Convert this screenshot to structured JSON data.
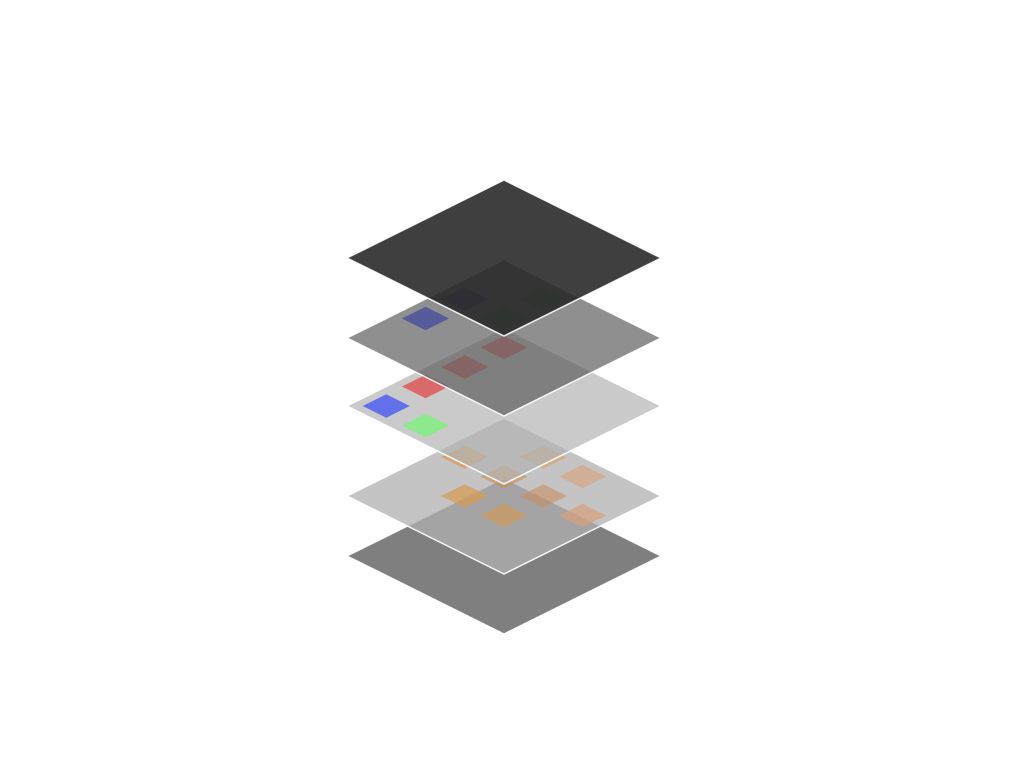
{
  "diagram": {
    "type": "isometric-layer-stack",
    "background_color": "#ffffff",
    "grid_columns": 4,
    "grid_rows": 4,
    "layers": [
      {
        "name": "base",
        "fill": "#7f7f7f",
        "opacity": 1.0,
        "tiles": []
      },
      {
        "name": "orange",
        "fill": "#b0b0b0",
        "opacity": 0.75,
        "tiles": [
          {
            "col": 0,
            "row": 1,
            "color": "#d89a50",
            "opacity": 0.7
          },
          {
            "col": 1,
            "row": 0,
            "color": "#d89a50",
            "opacity": 0.5
          },
          {
            "col": 1,
            "row": 1,
            "color": "#c88d4e",
            "opacity": 0.6
          },
          {
            "col": 1,
            "row": 2,
            "color": "#d89a50",
            "opacity": 0.7
          },
          {
            "col": 2,
            "row": 2,
            "color": "#d89a50",
            "opacity": 0.6
          },
          {
            "col": 2,
            "row": 1,
            "color": "#c98f60",
            "opacity": 0.6
          },
          {
            "col": 3,
            "row": 1,
            "color": "#d8a07a",
            "opacity": 0.7
          },
          {
            "col": 2,
            "row": 0,
            "color": "#d8a07a",
            "opacity": 0.6
          }
        ]
      },
      {
        "name": "rgb",
        "fill": "#b4b4b4",
        "opacity": 0.7,
        "tiles": [
          {
            "col": 0,
            "row": 0,
            "color": "#e05050",
            "opacity": 0.75
          },
          {
            "col": 0,
            "row": 1,
            "color": "#e05050",
            "opacity": 0.75
          },
          {
            "col": 0,
            "row": 2,
            "color": "#e05050",
            "opacity": 0.8
          },
          {
            "col": 1,
            "row": 3,
            "color": "#80f080",
            "opacity": 0.85
          },
          {
            "col": 0,
            "row": 3,
            "color": "#5060f0",
            "opacity": 0.85
          }
        ]
      },
      {
        "name": "dark",
        "fill": "#5f5f5f",
        "opacity": 0.7,
        "tiles": [
          {
            "col": 0,
            "row": 1,
            "color": "#3a2f9a",
            "opacity": 0.6
          },
          {
            "col": 0,
            "row": 2,
            "color": "#2f3aa0",
            "opacity": 0.6
          },
          {
            "col": 1,
            "row": 0,
            "color": "#3f8f3f",
            "opacity": 0.55
          },
          {
            "col": 1,
            "row": 1,
            "color": "#3f8f3f",
            "opacity": 0.55
          }
        ]
      },
      {
        "name": "top",
        "fill": "#2a2a2a",
        "opacity": 0.9,
        "tiles": []
      }
    ]
  }
}
